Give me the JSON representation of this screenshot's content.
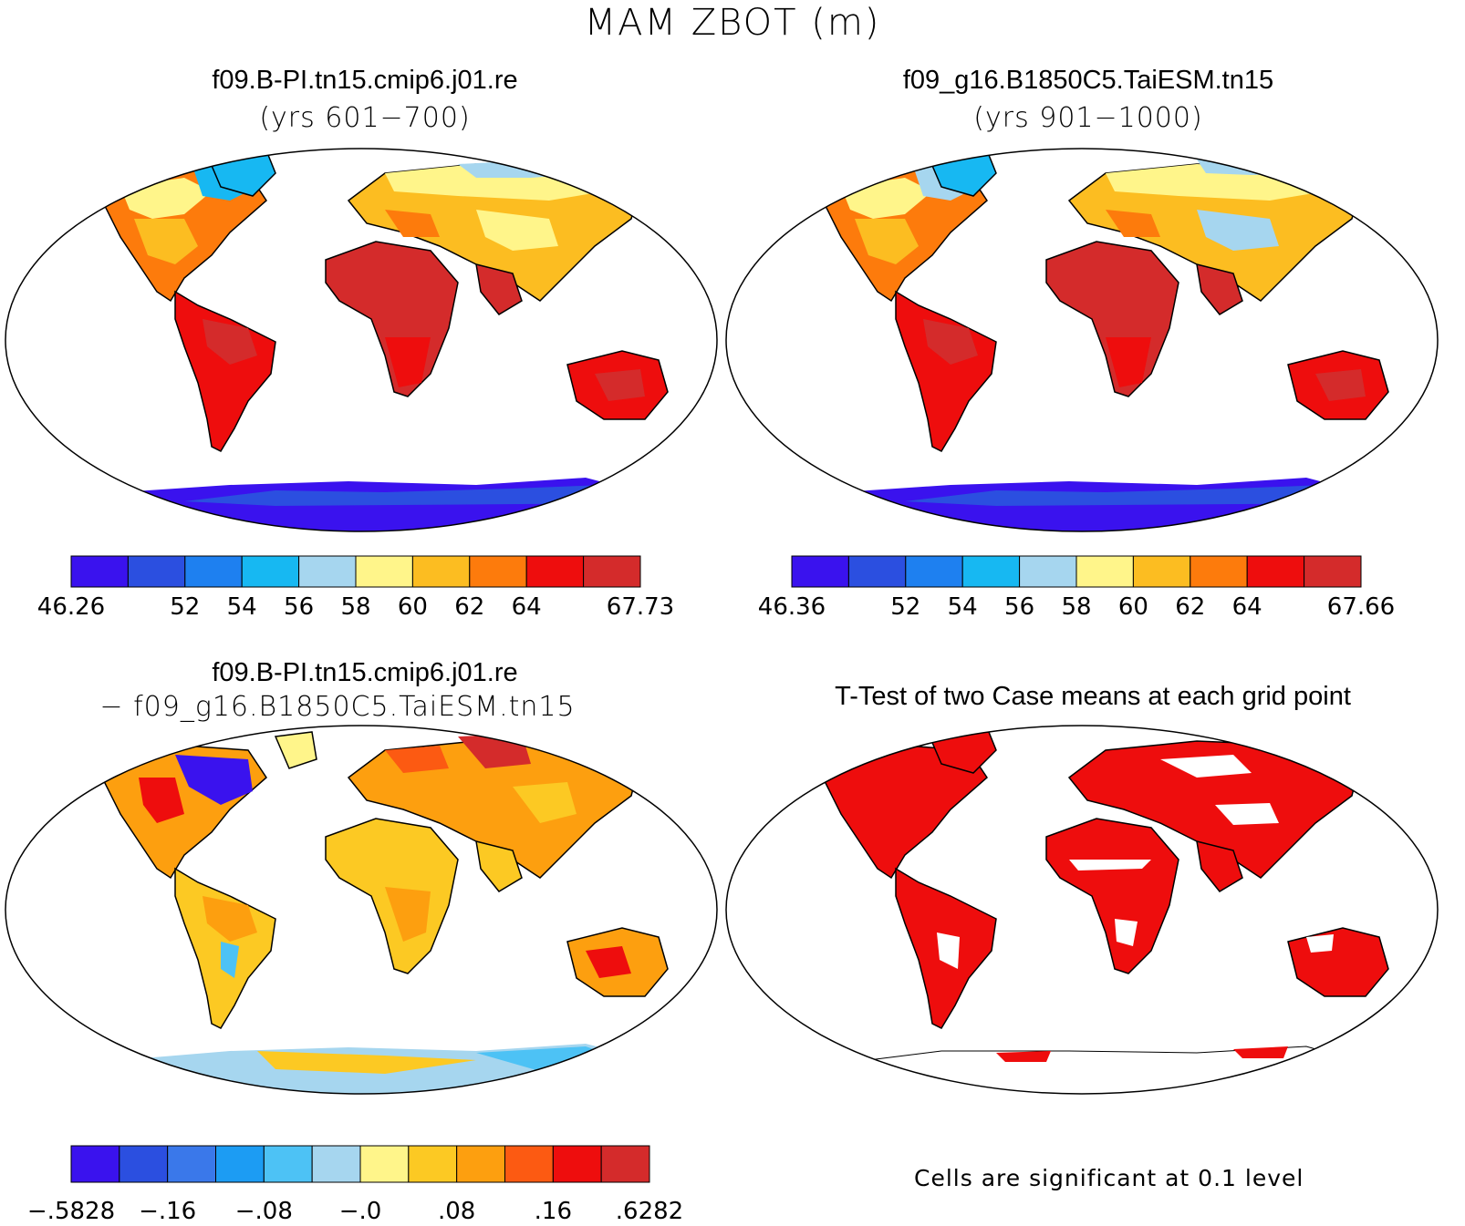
{
  "title": "MAM ZBOT (m)",
  "panels": [
    {
      "id": "case1",
      "title": "f09.B-PI.tn15.cmip6.j01.re",
      "subtitle": "(yrs 601−700)",
      "colorbar": {
        "colors": [
          "#3a12ee",
          "#2b4fe0",
          "#1e80f0",
          "#17b8f2",
          "#a6d6ef",
          "#fff58a",
          "#fcbd21",
          "#fd7b0c",
          "#ee0d0d",
          "#d42b2b"
        ],
        "labels": [
          "46.26",
          "",
          "52",
          "54",
          "56",
          "58",
          "60",
          "62",
          "64",
          "",
          "67.73"
        ]
      }
    },
    {
      "id": "case2",
      "title": "f09_g16.B1850C5.TaiESM.tn15",
      "subtitle": "(yrs 901−1000)",
      "colorbar": {
        "colors": [
          "#3a12ee",
          "#2b4fe0",
          "#1e80f0",
          "#17b8f2",
          "#a6d6ef",
          "#fff58a",
          "#fcbd21",
          "#fd7b0c",
          "#ee0d0d",
          "#d42b2b"
        ],
        "labels": [
          "46.36",
          "",
          "52",
          "54",
          "56",
          "58",
          "60",
          "62",
          "64",
          "",
          "67.66"
        ]
      }
    },
    {
      "id": "diff",
      "title": "f09.B-PI.tn15.cmip6.j01.re",
      "subtitle": "− f09_g16.B1850C5.TaiESM.tn15",
      "colorbar": {
        "colors": [
          "#3a12ee",
          "#2b4fe0",
          "#3a78ea",
          "#1c9cf3",
          "#4dc2f5",
          "#a6d6ef",
          "#fff58a",
          "#fcc923",
          "#fd9f0f",
          "#fc5a12",
          "#ee0d0d",
          "#d42b2b"
        ],
        "labels": [
          "−.5828",
          "−.16",
          "−.08",
          "−.0",
          ".08",
          ".16",
          ".6282"
        ]
      }
    },
    {
      "id": "ttest",
      "title": "T-Test of two Case means at each grid point",
      "note": "Cells are significant at 0.1 level"
    }
  ]
}
